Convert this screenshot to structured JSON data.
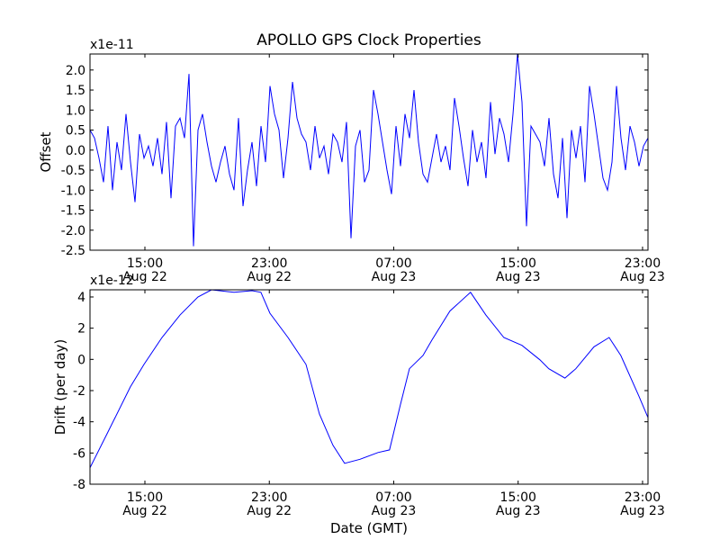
{
  "chart_data": [
    {
      "type": "line",
      "title": "APOLLO GPS Clock Properties",
      "ylabel": "Offset",
      "xlabel": "",
      "y_multiplier": "x1e-11",
      "ylim": [
        -2.5,
        2.4
      ],
      "xlim_hours": [
        11.47,
        47.35
      ],
      "yticks": [
        -2.5,
        -2.0,
        -1.5,
        -1.0,
        -0.5,
        0.0,
        0.5,
        1.0,
        1.5,
        2.0
      ],
      "ytick_labels": [
        "-2.5",
        "-2.0",
        "-1.5",
        "-1.0",
        "-0.5",
        "0.0",
        "0.5",
        "1.0",
        "1.5",
        "2.0"
      ],
      "xticks_hours": [
        15,
        23,
        31,
        39,
        47
      ],
      "xtick_labels": [
        [
          "15:00",
          "Aug 22"
        ],
        [
          "23:00",
          "Aug 22"
        ],
        [
          "07:00",
          "Aug 23"
        ],
        [
          "15:00",
          "Aug 23"
        ],
        [
          "23:00",
          "Aug 23"
        ]
      ],
      "color": "#0000ff",
      "series": [
        {
          "name": "Offset",
          "x_start_hours": 11.47,
          "x_end_hours": 47.35,
          "values": [
            0.5,
            0.3,
            -0.2,
            -0.8,
            0.6,
            -1.0,
            0.2,
            -0.5,
            0.9,
            -0.3,
            -1.3,
            0.4,
            -0.2,
            0.1,
            -0.4,
            0.3,
            -0.6,
            0.7,
            -1.2,
            0.6,
            0.8,
            0.3,
            1.9,
            -2.4,
            0.5,
            0.9,
            0.2,
            -0.4,
            -0.8,
            -0.3,
            0.1,
            -0.6,
            -1.0,
            0.8,
            -1.4,
            -0.5,
            0.2,
            -0.9,
            0.6,
            -0.3,
            1.6,
            0.9,
            0.5,
            -0.7,
            0.3,
            1.7,
            0.8,
            0.4,
            0.2,
            -0.5,
            0.6,
            -0.2,
            0.1,
            -0.6,
            0.4,
            0.2,
            -0.3,
            0.7,
            -2.2,
            0.1,
            0.5,
            -0.8,
            -0.5,
            1.5,
            0.9,
            0.2,
            -0.5,
            -1.1,
            0.6,
            -0.4,
            0.9,
            0.3,
            1.5,
            0.2,
            -0.6,
            -0.8,
            -0.2,
            0.4,
            -0.3,
            0.1,
            -0.5,
            1.3,
            0.6,
            -0.2,
            -0.9,
            0.5,
            -0.3,
            0.2,
            -0.7,
            1.2,
            -0.1,
            0.8,
            0.4,
            -0.3,
            0.9,
            2.4,
            1.2,
            -1.9,
            0.6,
            0.4,
            0.2,
            -0.4,
            0.8,
            -0.6,
            -1.2,
            0.3,
            -1.7,
            0.5,
            -0.2,
            0.6,
            -0.8,
            1.6,
            0.9,
            0.1,
            -0.7,
            -1.0,
            -0.3,
            1.6,
            0.3,
            -0.5,
            0.6,
            0.2,
            -0.4,
            0.1,
            0.3
          ]
        }
      ]
    },
    {
      "type": "line",
      "title": "",
      "ylabel": "Drift (per day)",
      "xlabel": "Date (GMT)",
      "y_multiplier": "x1e-12",
      "ylim": [
        -8,
        4.46
      ],
      "xlim_hours": [
        11.47,
        47.35
      ],
      "yticks": [
        -8,
        -6,
        -4,
        -2,
        0,
        2,
        4
      ],
      "ytick_labels": [
        "-8",
        "-6",
        "-4",
        "-2",
        "0",
        "2",
        "4"
      ],
      "xticks_hours": [
        15,
        23,
        31,
        39,
        47
      ],
      "xtick_labels": [
        [
          "15:00",
          "Aug 22"
        ],
        [
          "23:00",
          "Aug 22"
        ],
        [
          "07:00",
          "Aug 23"
        ],
        [
          "15:00",
          "Aug 23"
        ],
        [
          "23:00",
          "Aug 23"
        ]
      ],
      "color": "#0000ff",
      "series": [
        {
          "name": "Drift",
          "x_hours": [
            11.47,
            12.63,
            14.07,
            14.94,
            16.1,
            17.26,
            18.41,
            19.28,
            20.73,
            21.89,
            22.46,
            23.04,
            24.2,
            25.36,
            26.22,
            27.09,
            27.84,
            28.83,
            29.99,
            30.73,
            31.43,
            32.01,
            32.88,
            33.45,
            34.61,
            35.94,
            36.92,
            38.08,
            39.24,
            40.4,
            40.97,
            42.01,
            42.71,
            43.87,
            44.85,
            45.6,
            46.76,
            47.34
          ],
          "values": [
            -6.95,
            -4.65,
            -1.76,
            -0.32,
            1.4,
            2.85,
            4.0,
            4.46,
            4.3,
            4.4,
            4.3,
            2.96,
            1.4,
            -0.32,
            -3.5,
            -5.5,
            -6.66,
            -6.4,
            -5.97,
            -5.8,
            -2.9,
            -0.6,
            0.25,
            1.23,
            3.1,
            4.3,
            2.85,
            1.4,
            0.9,
            -0.03,
            -0.6,
            -1.2,
            -0.6,
            0.8,
            1.4,
            0.25,
            -2.34,
            -3.7
          ]
        }
      ]
    }
  ]
}
